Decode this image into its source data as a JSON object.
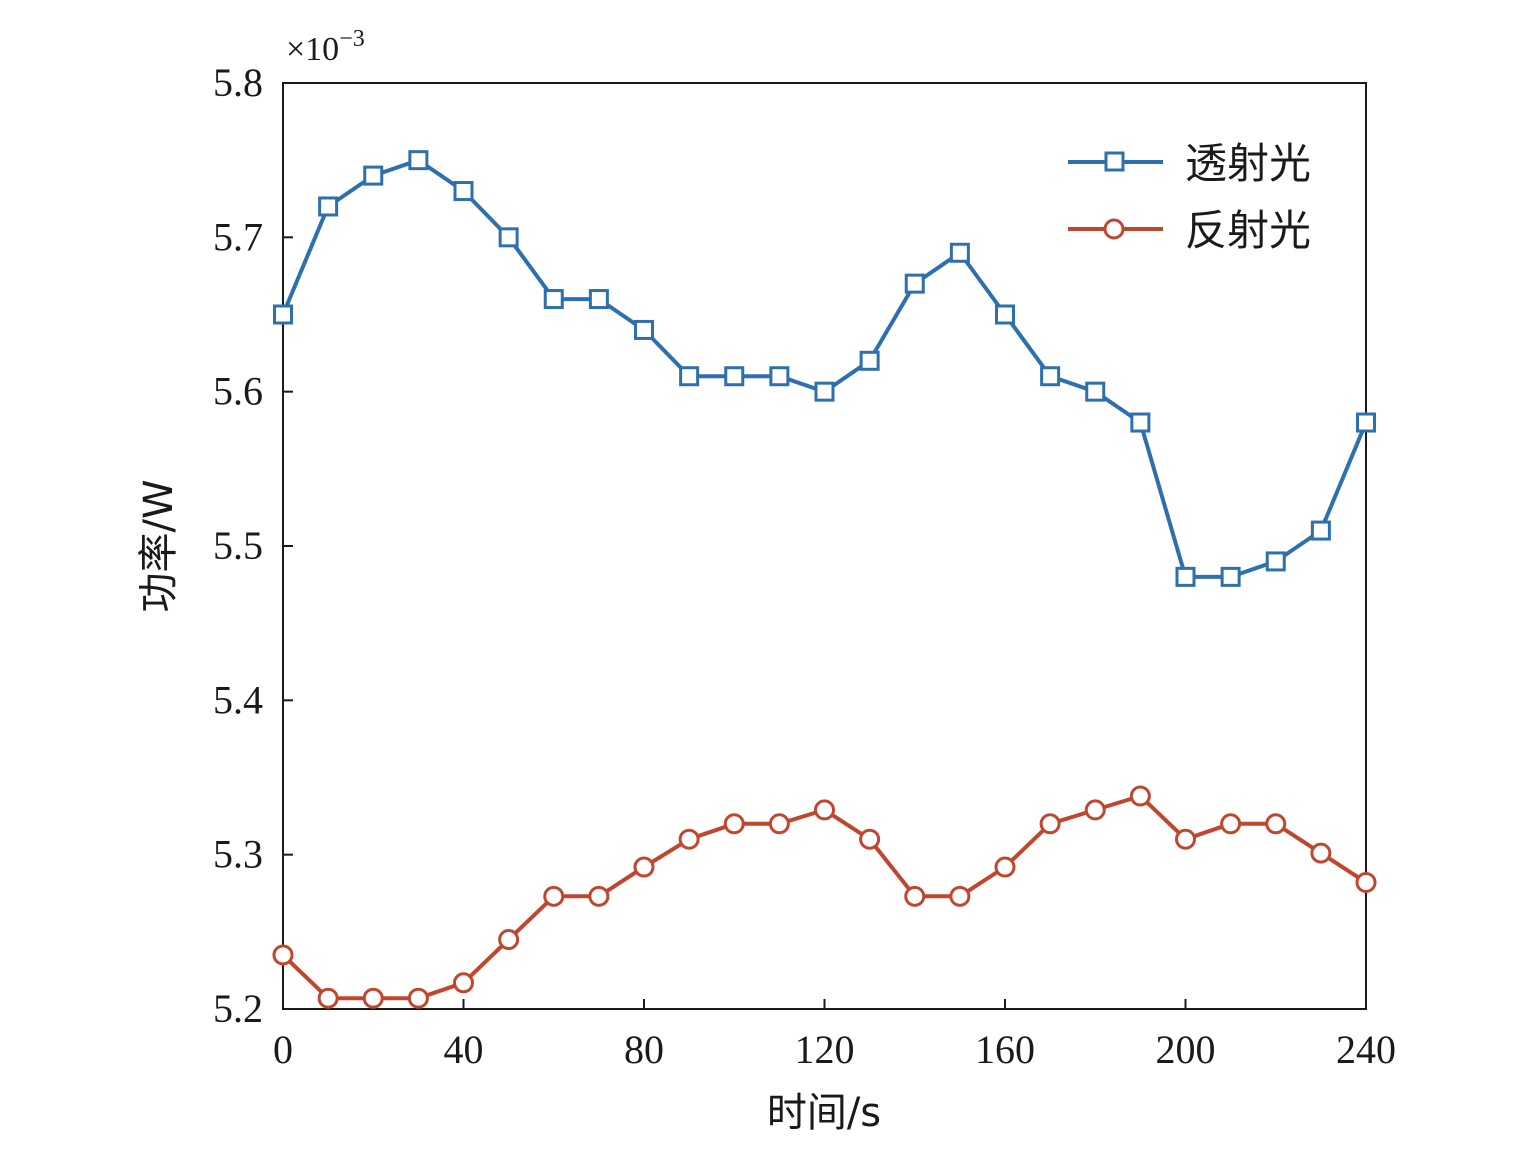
{
  "chart_data": {
    "type": "line",
    "xlabel": "时间/s",
    "ylabel": "功率/W",
    "y_multiplier": "×10",
    "y_multiplier_exp": "−3",
    "xlim": [
      0,
      240
    ],
    "ylim": [
      5.2,
      5.8
    ],
    "xticks": [
      "0",
      "40",
      "80",
      "120",
      "160",
      "200",
      "240"
    ],
    "yticks": [
      "5.2",
      "5.3",
      "5.4",
      "5.5",
      "5.6",
      "5.7",
      "5.8"
    ],
    "legend_position": "top-right",
    "x": [
      0,
      10,
      20,
      30,
      40,
      50,
      60,
      70,
      80,
      90,
      100,
      110,
      120,
      130,
      140,
      150,
      160,
      170,
      180,
      190,
      200,
      210,
      220,
      230,
      240
    ],
    "series": [
      {
        "name": "透射光",
        "marker": "square",
        "color": "#2e6fae",
        "values": [
          5.65,
          5.72,
          5.74,
          5.75,
          5.73,
          5.7,
          5.66,
          5.66,
          5.64,
          5.61,
          5.61,
          5.61,
          5.6,
          5.62,
          5.67,
          5.69,
          5.65,
          5.61,
          5.6,
          5.58,
          5.48,
          5.48,
          5.49,
          5.51,
          5.58
        ]
      },
      {
        "name": "反射光",
        "marker": "circle",
        "color": "#c0462e",
        "values": [
          5.235,
          5.207,
          5.207,
          5.207,
          5.217,
          5.245,
          5.273,
          5.273,
          5.292,
          5.31,
          5.32,
          5.32,
          5.329,
          5.31,
          5.273,
          5.273,
          5.292,
          5.32,
          5.329,
          5.338,
          5.31,
          5.32,
          5.32,
          5.301,
          5.282
        ]
      }
    ]
  }
}
